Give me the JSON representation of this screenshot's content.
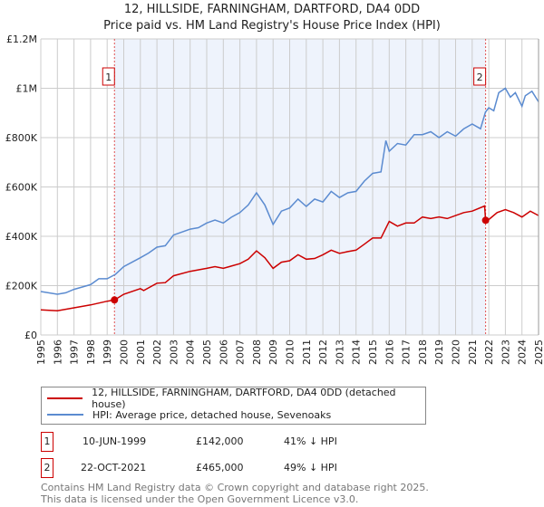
{
  "chart_data": {
    "type": "line",
    "title": "12, HILLSIDE, FARNINGHAM, DARTFORD, DA4 0DD",
    "subtitle": "Price paid vs. HM Land Registry's House Price Index (HPI)",
    "xlabel": "",
    "ylabel": "",
    "xlim": [
      1995,
      2025
    ],
    "ylim": [
      0,
      1200000
    ],
    "grid": true,
    "legend_placement": "below",
    "x_ticks": [
      "1995",
      "1996",
      "1997",
      "1998",
      "1999",
      "2000",
      "2001",
      "2002",
      "2003",
      "2004",
      "2005",
      "2006",
      "2007",
      "2008",
      "2009",
      "2010",
      "2011",
      "2012",
      "2013",
      "2014",
      "2015",
      "2016",
      "2017",
      "2018",
      "2019",
      "2020",
      "2021",
      "2022",
      "2023",
      "2024",
      "2025"
    ],
    "y_ticks": [
      {
        "v": 0,
        "label": "£0"
      },
      {
        "v": 200000,
        "label": "£200K"
      },
      {
        "v": 400000,
        "label": "£400K"
      },
      {
        "v": 600000,
        "label": "£600K"
      },
      {
        "v": 800000,
        "label": "£800K"
      },
      {
        "v": 1000000,
        "label": "£1M"
      },
      {
        "v": 1200000,
        "label": "£1.2M"
      }
    ],
    "shaded_range": [
      1999.44,
      2021.81
    ],
    "series": [
      {
        "name": "12, HILLSIDE, FARNINGHAM, DARTFORD, DA4 0DD (detached house)",
        "color": "#cc0000",
        "x": [
          1995,
          1996,
          1997,
          1998,
          1999,
          1999.44,
          2000,
          2001,
          2001.2,
          2002,
          2002.5,
          2003,
          2004,
          2005,
          2005.5,
          2006,
          2007,
          2007.5,
          2008,
          2008.5,
          2009,
          2009.5,
          2010,
          2010.5,
          2011,
          2011.5,
          2012,
          2012.5,
          2013,
          2013.5,
          2014,
          2014.5,
          2015,
          2015.5,
          2016,
          2016.5,
          2017,
          2017.5,
          2018,
          2018.5,
          2019,
          2019.5,
          2020,
          2020.5,
          2021,
          2021.75,
          2021.81,
          2022,
          2022.5,
          2023,
          2023.5,
          2024,
          2024.5,
          2025
        ],
        "y": [
          102000,
          98000,
          110000,
          122000,
          137000,
          142000,
          165000,
          188000,
          180000,
          210000,
          212000,
          240000,
          258000,
          270000,
          277000,
          270000,
          289000,
          307000,
          341000,
          313000,
          270000,
          295000,
          301000,
          325000,
          307000,
          310000,
          325000,
          344000,
          331000,
          338000,
          344000,
          368000,
          393000,
          393000,
          460000,
          441000,
          454000,
          454000,
          478000,
          472000,
          478000,
          472000,
          484000,
          496000,
          502000,
          523000,
          465000,
          468000,
          496000,
          508000,
          496000,
          478000,
          502000,
          484000
        ]
      },
      {
        "name": "HPI: Average price, detached house, Sevenoaks",
        "color": "#5b8bd0",
        "x": [
          1995,
          1996,
          1996.5,
          1997,
          1998,
          1998.5,
          1999,
          1999.5,
          2000,
          2001,
          2001.5,
          2002,
          2002.5,
          2003,
          2004,
          2004.5,
          2005,
          2005.5,
          2006,
          2006.5,
          2007,
          2007.5,
          2008,
          2008.5,
          2009,
          2009.5,
          2010,
          2010.5,
          2011,
          2011.5,
          2012,
          2012.5,
          2013,
          2013.5,
          2014,
          2014.5,
          2015,
          2015.5,
          2015.8,
          2016,
          2016.5,
          2017,
          2017.5,
          2018,
          2018.5,
          2019,
          2019.5,
          2020,
          2020.5,
          2021,
          2021.5,
          2021.8,
          2022,
          2022.3,
          2022.6,
          2023,
          2023.3,
          2023.6,
          2024,
          2024.2,
          2024.6,
          2025
        ],
        "y": [
          176000,
          165000,
          171000,
          185000,
          204000,
          228000,
          228000,
          246000,
          277000,
          313000,
          332000,
          356000,
          362000,
          405000,
          429000,
          435000,
          454000,
          466000,
          454000,
          478000,
          496000,
          527000,
          576000,
          527000,
          448000,
          502000,
          515000,
          551000,
          521000,
          551000,
          539000,
          582000,
          557000,
          576000,
          582000,
          624000,
          655000,
          661000,
          788000,
          745000,
          776000,
          770000,
          812000,
          812000,
          824000,
          800000,
          824000,
          806000,
          836000,
          855000,
          836000,
          903000,
          921000,
          909000,
          982000,
          1000000,
          964000,
          982000,
          927000,
          970000,
          988000,
          945000
        ]
      }
    ],
    "markers": [
      {
        "label": "1",
        "x": 1999.44,
        "y": 142000
      },
      {
        "label": "2",
        "x": 2021.81,
        "y": 465000
      }
    ]
  },
  "legend": {
    "property": "12, HILLSIDE, FARNINGHAM, DARTFORD, DA4 0DD (detached house)",
    "hpi": "HPI: Average price, detached house, Sevenoaks"
  },
  "transactions": [
    {
      "num": "1",
      "date": "10-JUN-1999",
      "price": "£142,000",
      "delta": "41% ↓ HPI"
    },
    {
      "num": "2",
      "date": "22-OCT-2021",
      "price": "£465,000",
      "delta": "49% ↓ HPI"
    }
  ],
  "footer": {
    "line1": "Contains HM Land Registry data © Crown copyright and database right 2025.",
    "line2": "This data is licensed under the Open Government Licence v3.0."
  },
  "colors": {
    "property": "#cc0000",
    "hpi": "#5b8bd0",
    "shade": "#eef3fc",
    "grid": "#cccccc"
  }
}
